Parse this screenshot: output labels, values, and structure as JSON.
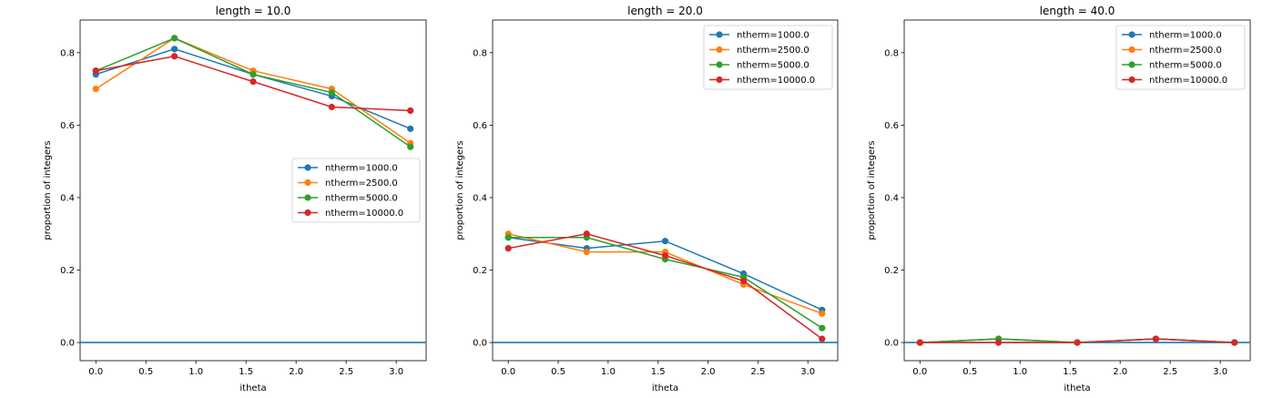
{
  "chart_data": [
    {
      "type": "line",
      "title": "length = 10.0",
      "xlabel": "itheta",
      "ylabel": "proportion of integers",
      "xlim": [
        -0.157,
        3.299
      ],
      "ylim": [
        -0.05,
        0.89
      ],
      "xticks": [
        0.0,
        0.5,
        1.0,
        1.5,
        2.0,
        2.5,
        3.0
      ],
      "xtick_labels": [
        "0.0",
        "0.5",
        "1.0",
        "1.5",
        "2.0",
        "2.5",
        "3.0"
      ],
      "yticks": [
        0.0,
        0.2,
        0.4,
        0.6,
        0.8
      ],
      "ytick_labels": [
        "0.0",
        "0.2",
        "0.4",
        "0.6",
        "0.8"
      ],
      "hline": 0.0,
      "legend_position": "center-right",
      "x": [
        0.0,
        0.785,
        1.571,
        2.356,
        3.142
      ],
      "series": [
        {
          "name": "ntherm=1000.0",
          "values": [
            0.74,
            0.81,
            0.74,
            0.68,
            0.59
          ]
        },
        {
          "name": "ntherm=2500.0",
          "values": [
            0.7,
            0.84,
            0.75,
            0.7,
            0.55
          ]
        },
        {
          "name": "ntherm=5000.0",
          "values": [
            0.75,
            0.84,
            0.74,
            0.69,
            0.54
          ]
        },
        {
          "name": "ntherm=10000.0",
          "values": [
            0.75,
            0.79,
            0.72,
            0.65,
            0.64
          ]
        }
      ]
    },
    {
      "type": "line",
      "title": "length = 20.0",
      "xlabel": "itheta",
      "ylabel": "proportion of integers",
      "xlim": [
        -0.157,
        3.299
      ],
      "ylim": [
        -0.05,
        0.89
      ],
      "xticks": [
        0.0,
        0.5,
        1.0,
        1.5,
        2.0,
        2.5,
        3.0
      ],
      "xtick_labels": [
        "0.0",
        "0.5",
        "1.0",
        "1.5",
        "2.0",
        "2.5",
        "3.0"
      ],
      "yticks": [
        0.0,
        0.2,
        0.4,
        0.6,
        0.8
      ],
      "ytick_labels": [
        "0.0",
        "0.2",
        "0.4",
        "0.6",
        "0.8"
      ],
      "hline": 0.0,
      "legend_position": "upper-right",
      "x": [
        0.0,
        0.785,
        1.571,
        2.356,
        3.142
      ],
      "series": [
        {
          "name": "ntherm=1000.0",
          "values": [
            0.29,
            0.26,
            0.28,
            0.19,
            0.09
          ]
        },
        {
          "name": "ntherm=2500.0",
          "values": [
            0.3,
            0.25,
            0.25,
            0.16,
            0.08
          ]
        },
        {
          "name": "ntherm=5000.0",
          "values": [
            0.29,
            0.29,
            0.23,
            0.18,
            0.04
          ]
        },
        {
          "name": "ntherm=10000.0",
          "values": [
            0.26,
            0.3,
            0.24,
            0.17,
            0.01
          ]
        }
      ]
    },
    {
      "type": "line",
      "title": "length = 40.0",
      "xlabel": "itheta",
      "ylabel": "proportion of integers",
      "xlim": [
        -0.157,
        3.299
      ],
      "ylim": [
        -0.05,
        0.89
      ],
      "xticks": [
        0.0,
        0.5,
        1.0,
        1.5,
        2.0,
        2.5,
        3.0
      ],
      "xtick_labels": [
        "0.0",
        "0.5",
        "1.0",
        "1.5",
        "2.0",
        "2.5",
        "3.0"
      ],
      "yticks": [
        0.0,
        0.2,
        0.4,
        0.6,
        0.8
      ],
      "ytick_labels": [
        "0.0",
        "0.2",
        "0.4",
        "0.6",
        "0.8"
      ],
      "hline": 0.0,
      "legend_position": "upper-right",
      "x": [
        0.0,
        0.785,
        1.571,
        2.356,
        3.142
      ],
      "series": [
        {
          "name": "ntherm=1000.0",
          "values": [
            0.0,
            0.01,
            0.0,
            0.01,
            0.0
          ]
        },
        {
          "name": "ntherm=2500.0",
          "values": [
            0.0,
            0.01,
            0.0,
            0.01,
            0.0
          ]
        },
        {
          "name": "ntherm=5000.0",
          "values": [
            0.0,
            0.01,
            0.0,
            0.01,
            0.0
          ]
        },
        {
          "name": "ntherm=10000.0",
          "values": [
            0.0,
            0.0,
            0.0,
            0.01,
            0.0
          ]
        }
      ]
    }
  ],
  "colors": [
    "#1f77b4",
    "#ff7f0e",
    "#2ca02c",
    "#d62728"
  ]
}
